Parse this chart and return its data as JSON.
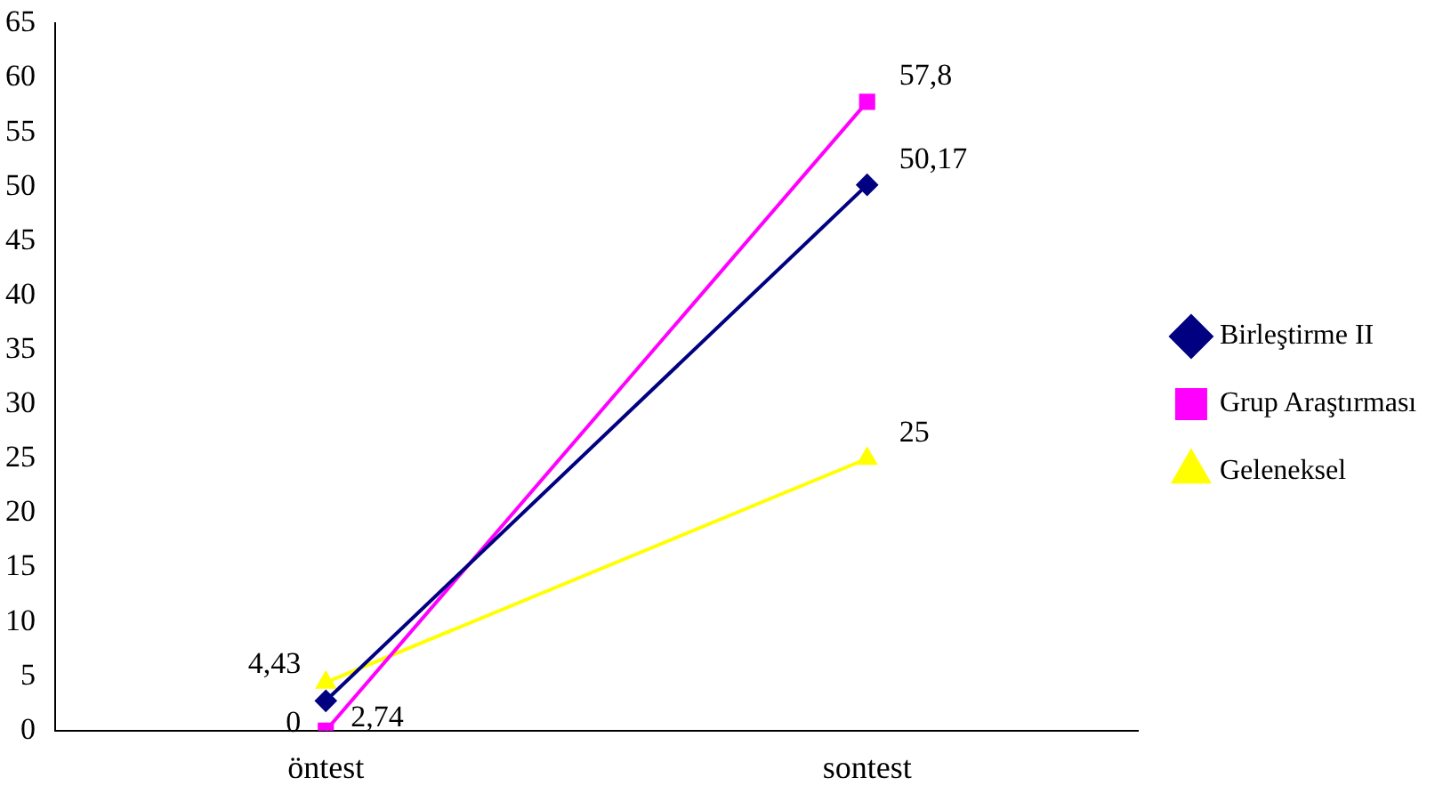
{
  "chart_data": {
    "type": "line",
    "categories": [
      "öntest",
      "sontest"
    ],
    "series": [
      {
        "name": "Birleştirme II",
        "color": "#000080",
        "marker": "diamond",
        "values": [
          2.74,
          50.17
        ],
        "value_labels": [
          "2,74",
          "50,17"
        ]
      },
      {
        "name": "Grup Araştırması",
        "color": "#ff00ff",
        "marker": "square",
        "values": [
          0,
          57.8
        ],
        "value_labels": [
          "0",
          "57,8"
        ]
      },
      {
        "name": "Geleneksel",
        "color": "#ffff00",
        "marker": "triangle",
        "values": [
          4.43,
          25
        ],
        "value_labels": [
          "4,43",
          "25"
        ]
      }
    ],
    "ylim": [
      0,
      65
    ],
    "yticks": [
      0,
      5,
      10,
      15,
      20,
      25,
      30,
      35,
      40,
      45,
      50,
      55,
      60,
      65
    ],
    "grid": false,
    "legend": "right"
  }
}
